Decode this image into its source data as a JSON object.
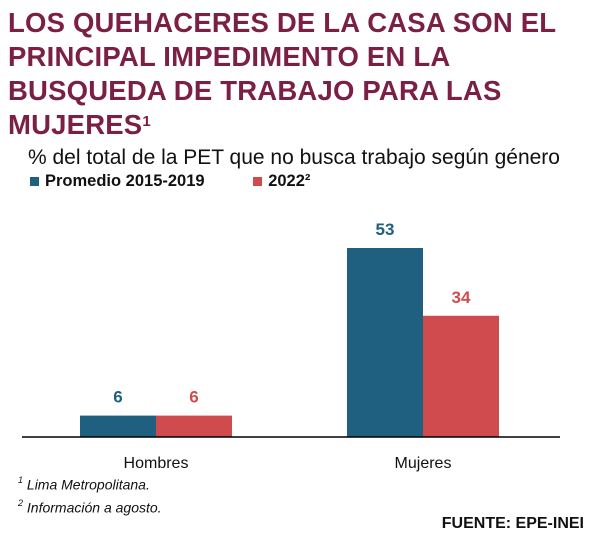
{
  "title": {
    "text": "LOS QUEHACERES DE LA CASA SON EL PRINCIPAL IMPEDIMENTO EN LA BUSQUEDA DE TRABAJO PARA LAS MUJERES",
    "note_ref": "1"
  },
  "subtitle": "% del total de la PET que no busca trabajo según género",
  "colors": {
    "title": "#7b1f45",
    "series_1": "#1f5f80",
    "series_2": "#cf4b4e"
  },
  "chart_data": {
    "type": "bar",
    "categories": [
      "Hombres",
      "Mujeres"
    ],
    "series": [
      {
        "name": "Promedio 2015-2019",
        "values": [
          6,
          53
        ],
        "color": "#1f5f80"
      },
      {
        "name": "2022²",
        "values": [
          6,
          34
        ],
        "color": "#cf4b4e"
      }
    ],
    "ylim": [
      0,
      53
    ],
    "grid": false,
    "legend_position": "top-left",
    "data_labels": true
  },
  "footnotes": [
    {
      "mark": "1",
      "text": "Lima Metropolitana."
    },
    {
      "mark": "2",
      "text": "Información a agosto."
    }
  ],
  "source": "FUENTE: EPE-INEI"
}
